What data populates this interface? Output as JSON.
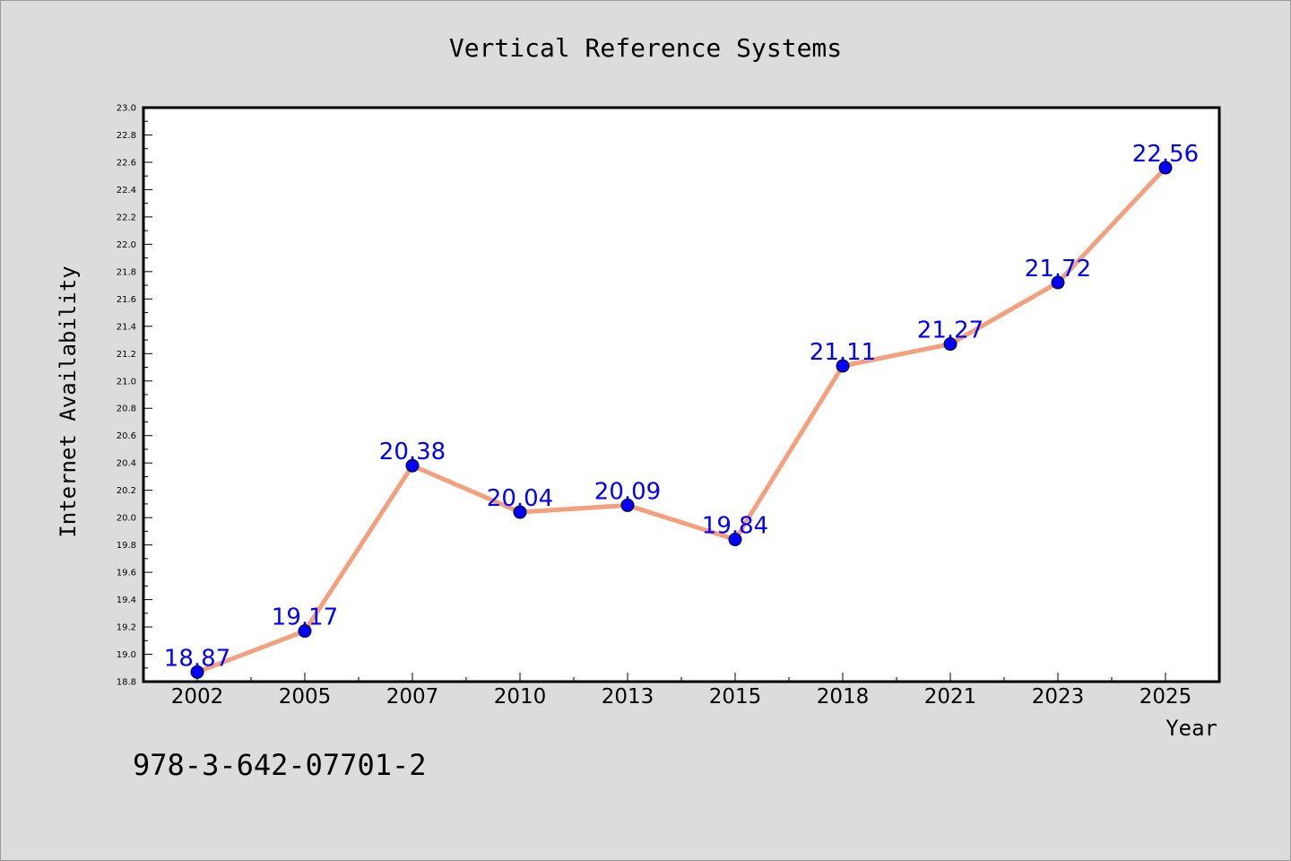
{
  "chart_data": {
    "type": "line",
    "title": "Vertical Reference Systems",
    "xlabel": "Year",
    "ylabel": "Internet Availability",
    "categories": [
      "2002",
      "2005",
      "2007",
      "2010",
      "2013",
      "2015",
      "2018",
      "2021",
      "2023",
      "2025"
    ],
    "series": [
      {
        "values": [
          18.87,
          19.17,
          20.38,
          20.04,
          20.09,
          19.84,
          21.11,
          21.27,
          21.72,
          22.56
        ]
      }
    ],
    "ylim": [
      18.8,
      23.0
    ],
    "y_ticks": [
      "18.8",
      "19.0",
      "19.2",
      "19.4",
      "19.6",
      "19.8",
      "20.0",
      "20.2",
      "20.4",
      "20.6",
      "20.8",
      "21.0",
      "21.2",
      "21.4",
      "21.6",
      "21.8",
      "22.0",
      "22.2",
      "22.4",
      "22.6",
      "22.8",
      "23.0"
    ],
    "data_labels": [
      "18.87",
      "19.17",
      "20.38",
      "20.04",
      "20.09",
      "19.84",
      "21.11",
      "21.27",
      "21.72",
      "22.56"
    ],
    "grid": false,
    "legend": "none",
    "colors": {
      "line": "#f4a07c",
      "marker": "#0000ff",
      "label": "#0000ff",
      "background": "#dcdcdc",
      "plot_background": "#ffffff"
    }
  },
  "footer": {
    "isbn": "978-3-642-07701-2"
  }
}
